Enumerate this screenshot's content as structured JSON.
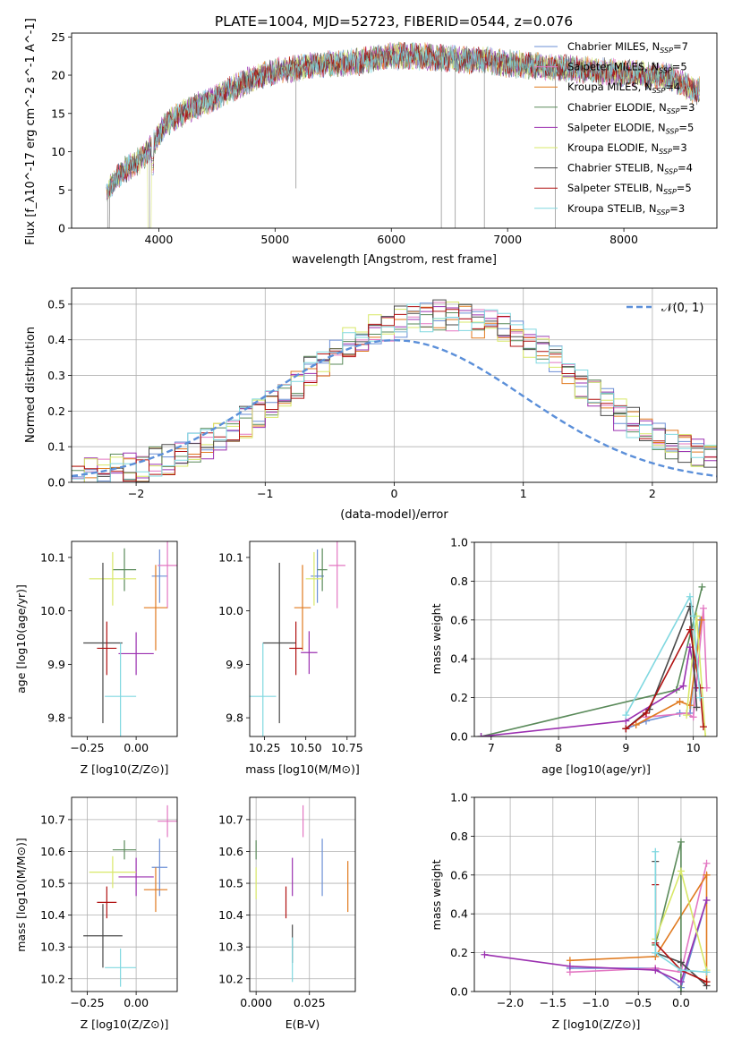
{
  "figure": {
    "title": "PLATE=1004, MJD=52723, FIBERID=0544, z=0.076"
  },
  "colors": {
    "chabrier_miles": "#6b8fd6",
    "salpeter_miles": "#e377c2",
    "kroupa_miles": "#e07a1f",
    "chabrier_elodie": "#5a8a5a",
    "salpeter_elodie": "#9b30b0",
    "kroupa_elodie": "#d8e868",
    "chabrier_stelib": "#4a4a4a",
    "salpeter_stelib": "#b01010",
    "kroupa_stelib": "#80d8e0",
    "gaussian": "#5b8fd9",
    "grid": "#b0b0b0"
  },
  "chart_data": [
    {
      "id": "spectrum",
      "type": "line",
      "title": "PLATE=1004, MJD=52723, FIBERID=0544, z=0.076",
      "xlabel": "wavelength [Angstrom, rest frame]",
      "ylabel": "Flux [f_λ10^-17 erg cm^-2 s^-1 A^-1]",
      "xlim": [
        3250,
        8800
      ],
      "ylim": [
        0,
        25.5
      ],
      "xticks": [
        "4000",
        "5000",
        "6000",
        "7000",
        "8000"
      ],
      "yticks": [
        "0",
        "5",
        "10",
        "15",
        "20",
        "25"
      ],
      "grid": false,
      "legend_position": "upper right",
      "legend": [
        {
          "name": "Chabrier MILES, N",
          "sub": "SSP",
          "val": "=7",
          "color_key": "chabrier_miles"
        },
        {
          "name": "Salpeter MILES, N",
          "sub": "SSP",
          "val": "=5",
          "color_key": "salpeter_miles"
        },
        {
          "name": "Kroupa MILES, N",
          "sub": "SSP",
          "val": "=4",
          "color_key": "kroupa_miles"
        },
        {
          "name": "Chabrier ELODIE, N",
          "sub": "SSP",
          "val": "=3",
          "color_key": "chabrier_elodie"
        },
        {
          "name": "Salpeter ELODIE, N",
          "sub": "SSP",
          "val": "=5",
          "color_key": "salpeter_elodie"
        },
        {
          "name": "Kroupa ELODIE, N",
          "sub": "SSP",
          "val": "=3",
          "color_key": "kroupa_elodie"
        },
        {
          "name": "Chabrier STELIB, N",
          "sub": "SSP",
          "val": "=4",
          "color_key": "chabrier_stelib"
        },
        {
          "name": "Salpeter STELIB, N",
          "sub": "SSP",
          "val": "=5",
          "color_key": "salpeter_stelib"
        },
        {
          "name": "Kroupa STELIB, N",
          "sub": "SSP",
          "val": "=3",
          "color_key": "kroupa_stelib"
        }
      ],
      "continuum": {
        "wavelength": [
          3550,
          3700,
          3850,
          3950,
          4050,
          4200,
          4400,
          4600,
          4800,
          5000,
          5200,
          5400,
          5600,
          5800,
          6000,
          6200,
          6400,
          6600,
          6800,
          7000,
          7200,
          7400,
          7600,
          7800,
          8000,
          8200,
          8400,
          8600
        ],
        "flux": [
          5,
          7.5,
          9,
          11,
          13.5,
          15,
          16.5,
          18,
          19.5,
          20.5,
          21,
          21.5,
          21.5,
          22,
          22.5,
          22.5,
          22.3,
          22,
          22,
          21.5,
          21.3,
          21,
          20.8,
          20.5,
          20.3,
          20,
          19.8,
          18
        ]
      },
      "deep_drops": [
        {
          "x": 3560,
          "y": 0
        },
        {
          "x": 3920,
          "y": 0
        },
        {
          "x": 5180,
          "y": 5.2
        },
        {
          "x": 6430,
          "y": 0
        },
        {
          "x": 6550,
          "y": 0
        },
        {
          "x": 6800,
          "y": 0
        },
        {
          "x": 7410,
          "y": 0
        }
      ]
    },
    {
      "id": "residuals",
      "type": "histogram",
      "xlabel": "(data-model)/error",
      "ylabel": "Normed distribution",
      "xlim": [
        -2.5,
        2.5
      ],
      "ylim": [
        0,
        0.545
      ],
      "xticks": [
        "−2",
        "−1",
        "0",
        "1",
        "2"
      ],
      "yticks": [
        "0.0",
        "0.1",
        "0.2",
        "0.3",
        "0.4",
        "0.5"
      ],
      "grid": true,
      "legend_position": "upper right",
      "gaussian_label": "𝒩(0, 1)",
      "bin_width": 0.1,
      "bin_start": -2.5,
      "base_profile": [
        0.02,
        0.025,
        0.03,
        0.035,
        0.04,
        0.045,
        0.055,
        0.065,
        0.08,
        0.095,
        0.11,
        0.13,
        0.15,
        0.17,
        0.19,
        0.22,
        0.25,
        0.28,
        0.31,
        0.34,
        0.37,
        0.39,
        0.41,
        0.43,
        0.44,
        0.45,
        0.455,
        0.46,
        0.47,
        0.465,
        0.46,
        0.45,
        0.44,
        0.43,
        0.41,
        0.39,
        0.37,
        0.34,
        0.31,
        0.28,
        0.25,
        0.22,
        0.19,
        0.17,
        0.15,
        0.13,
        0.11,
        0.095,
        0.08,
        0.065,
        0.055
      ],
      "series_order": [
        "chabrier_miles",
        "salpeter_miles",
        "kroupa_miles",
        "chabrier_elodie",
        "salpeter_elodie",
        "kroupa_elodie",
        "chabrier_stelib",
        "salpeter_stelib",
        "kroupa_stelib"
      ]
    },
    {
      "id": "age_vs_z",
      "type": "errorbar",
      "xlabel": "Z [log10(Z/Z⊙)]",
      "ylabel": "age  [log10(age/yr)]",
      "xlim": [
        -0.33,
        0.21
      ],
      "ylim": [
        9.765,
        10.13
      ],
      "xticks": [
        "−0.25",
        "0.00"
      ],
      "yticks": [
        "9.8",
        "9.9",
        "10.0",
        "10.1"
      ],
      "grid": false,
      "points": [
        {
          "c": "chabrier_miles",
          "x": 0.12,
          "y": 10.065,
          "xe": 0.04,
          "ye": 0.05
        },
        {
          "c": "salpeter_miles",
          "x": 0.16,
          "y": 10.085,
          "xe": 0.05,
          "ye": 0.08
        },
        {
          "c": "kroupa_miles",
          "x": 0.1,
          "y": 10.006,
          "xe": 0.06,
          "ye": 0.08
        },
        {
          "c": "chabrier_elodie",
          "x": -0.06,
          "y": 10.077,
          "xe": 0.06,
          "ye": 0.04
        },
        {
          "c": "salpeter_elodie",
          "x": 0.0,
          "y": 9.92,
          "xe": 0.09,
          "ye": 0.04
        },
        {
          "c": "kroupa_elodie",
          "x": -0.12,
          "y": 10.06,
          "xe": 0.12,
          "ye": 0.05
        },
        {
          "c": "chabrier_stelib",
          "x": -0.17,
          "y": 9.94,
          "xe": 0.1,
          "ye": 0.15
        },
        {
          "c": "salpeter_stelib",
          "x": -0.15,
          "y": 9.93,
          "xe": 0.05,
          "ye": 0.05
        },
        {
          "c": "kroupa_stelib",
          "x": -0.08,
          "y": 9.84,
          "xe": 0.08,
          "ye": 0.1
        }
      ]
    },
    {
      "id": "age_vs_mass",
      "type": "errorbar",
      "xlabel": "mass [log10(M/M⊙)]",
      "ylabel": "",
      "xlim": [
        10.16,
        10.8
      ],
      "ylim": [
        9.765,
        10.13
      ],
      "xticks": [
        "10.25",
        "10.50",
        "10.75"
      ],
      "yticks": [
        "9.8",
        "9.9",
        "10.0",
        "10.1"
      ],
      "grid": false,
      "points": [
        {
          "c": "chabrier_miles",
          "x": 10.57,
          "y": 10.065,
          "xe": 0.04,
          "ye": 0.05
        },
        {
          "c": "salpeter_miles",
          "x": 10.69,
          "y": 10.085,
          "xe": 0.05,
          "ye": 0.08
        },
        {
          "c": "kroupa_miles",
          "x": 10.48,
          "y": 10.006,
          "xe": 0.05,
          "ye": 0.08
        },
        {
          "c": "chabrier_elodie",
          "x": 10.6,
          "y": 10.077,
          "xe": 0.03,
          "ye": 0.04
        },
        {
          "c": "salpeter_elodie",
          "x": 10.52,
          "y": 9.922,
          "xe": 0.05,
          "ye": 0.04
        },
        {
          "c": "kroupa_elodie",
          "x": 10.55,
          "y": 10.06,
          "xe": 0.05,
          "ye": 0.05
        },
        {
          "c": "chabrier_stelib",
          "x": 10.34,
          "y": 9.94,
          "xe": 0.1,
          "ye": 0.15
        },
        {
          "c": "salpeter_stelib",
          "x": 10.44,
          "y": 9.93,
          "xe": 0.04,
          "ye": 0.05
        },
        {
          "c": "kroupa_stelib",
          "x": 10.24,
          "y": 9.84,
          "xe": 0.08,
          "ye": 0.1
        }
      ]
    },
    {
      "id": "mass_weight_vs_age",
      "type": "line",
      "xlabel": "age  [log10(age/yr)]",
      "ylabel": "mass weight",
      "xlim": [
        6.75,
        10.35
      ],
      "ylim": [
        0,
        1.0
      ],
      "xticks": [
        "7",
        "8",
        "9",
        "10"
      ],
      "yticks": [
        "0.0",
        "0.2",
        "0.4",
        "0.6",
        "0.8",
        "1.0"
      ],
      "grid": true,
      "series": [
        {
          "c": "chabrier_miles",
          "points": [
            [
              9.0,
              0.04
            ],
            [
              9.3,
              0.08
            ],
            [
              9.8,
              0.12
            ],
            [
              9.95,
              0.12
            ],
            [
              10.1,
              0.6
            ]
          ]
        },
        {
          "c": "salpeter_miles",
          "points": [
            [
              9.3,
              0.1
            ],
            [
              9.9,
              0.12
            ],
            [
              10.0,
              0.1
            ],
            [
              10.15,
              0.66
            ],
            [
              10.2,
              0.25
            ]
          ]
        },
        {
          "c": "kroupa_miles",
          "points": [
            [
              9.15,
              0.06
            ],
            [
              9.8,
              0.18
            ],
            [
              9.95,
              0.16
            ],
            [
              10.12,
              0.6
            ]
          ]
        },
        {
          "c": "chabrier_elodie",
          "points": [
            [
              6.85,
              0.0
            ],
            [
              9.75,
              0.24
            ],
            [
              10.13,
              0.77
            ]
          ]
        },
        {
          "c": "salpeter_elodie",
          "points": [
            [
              6.85,
              0.0
            ],
            [
              9.0,
              0.08
            ],
            [
              9.85,
              0.26
            ],
            [
              9.95,
              0.46
            ],
            [
              10.05,
              0.25
            ]
          ]
        },
        {
          "c": "kroupa_elodie",
          "points": [
            [
              9.9,
              0.11
            ],
            [
              10.05,
              0.62
            ],
            [
              10.18,
              0.0
            ]
          ]
        },
        {
          "c": "chabrier_stelib",
          "points": [
            [
              9.0,
              0.04
            ],
            [
              9.35,
              0.14
            ],
            [
              9.95,
              0.67
            ],
            [
              10.05,
              0.15
            ]
          ]
        },
        {
          "c": "salpeter_stelib",
          "points": [
            [
              9.0,
              0.04
            ],
            [
              9.3,
              0.12
            ],
            [
              9.95,
              0.55
            ],
            [
              10.1,
              0.25
            ],
            [
              10.15,
              0.05
            ]
          ]
        },
        {
          "c": "kroupa_stelib",
          "points": [
            [
              9.0,
              0.11
            ],
            [
              9.95,
              0.72
            ],
            [
              10.0,
              0.62
            ],
            [
              10.1,
              0.2
            ]
          ]
        }
      ]
    },
    {
      "id": "mass_vs_z",
      "type": "errorbar",
      "xlabel": "Z [log10(Z/Z⊙)]",
      "ylabel": "mass [log10(M/M⊙)]",
      "xlim": [
        -0.33,
        0.21
      ],
      "ylim": [
        10.16,
        10.77
      ],
      "xticks": [
        "−0.25",
        "0.00"
      ],
      "yticks": [
        "10.2",
        "10.3",
        "10.4",
        "10.5",
        "10.6",
        "10.7"
      ],
      "grid": true,
      "points": [
        {
          "c": "chabrier_miles",
          "x": 0.12,
          "y": 10.55,
          "xe": 0.04,
          "ye": 0.09
        },
        {
          "c": "salpeter_miles",
          "x": 0.16,
          "y": 10.695,
          "xe": 0.05,
          "ye": 0.05
        },
        {
          "c": "kroupa_miles",
          "x": 0.1,
          "y": 10.48,
          "xe": 0.06,
          "ye": 0.07
        },
        {
          "c": "chabrier_elodie",
          "x": -0.06,
          "y": 10.605,
          "xe": 0.06,
          "ye": 0.03
        },
        {
          "c": "salpeter_elodie",
          "x": 0.0,
          "y": 10.52,
          "xe": 0.09,
          "ye": 0.06
        },
        {
          "c": "kroupa_elodie",
          "x": -0.12,
          "y": 10.535,
          "xe": 0.12,
          "ye": 0.05
        },
        {
          "c": "chabrier_stelib",
          "x": -0.17,
          "y": 10.335,
          "xe": 0.1,
          "ye": 0.1
        },
        {
          "c": "salpeter_stelib",
          "x": -0.15,
          "y": 10.44,
          "xe": 0.05,
          "ye": 0.05
        },
        {
          "c": "kroupa_stelib",
          "x": -0.08,
          "y": 10.235,
          "xe": 0.08,
          "ye": 0.06
        }
      ]
    },
    {
      "id": "mass_vs_ebv",
      "type": "errorbar",
      "xlabel": "E(B-V)",
      "ylabel": "",
      "xlim": [
        -0.003,
        0.0465
      ],
      "ylim": [
        10.16,
        10.77
      ],
      "xticks": [
        "0.000",
        "0.025"
      ],
      "yticks": [
        "10.2",
        "10.3",
        "10.4",
        "10.5",
        "10.6",
        "10.7"
      ],
      "grid": true,
      "points": [
        {
          "c": "chabrier_miles",
          "x": 0.031,
          "y": 10.55,
          "xe": 0.0,
          "ye": 0.09
        },
        {
          "c": "salpeter_miles",
          "x": 0.022,
          "y": 10.695,
          "xe": 0.0,
          "ye": 0.05
        },
        {
          "c": "kroupa_miles",
          "x": 0.043,
          "y": 10.49,
          "xe": 0.0,
          "ye": 0.08
        },
        {
          "c": "chabrier_elodie",
          "x": 0.0,
          "y": 10.605,
          "xe": 0.0,
          "ye": 0.03
        },
        {
          "c": "salpeter_elodie",
          "x": 0.017,
          "y": 10.52,
          "xe": 0.0,
          "ye": 0.06
        },
        {
          "c": "kroupa_elodie",
          "x": 0.0,
          "y": 10.5,
          "xe": 0.0,
          "ye": 0.05
        },
        {
          "c": "chabrier_stelib",
          "x": 0.017,
          "y": 10.31,
          "xe": 0.0,
          "ye": 0.06
        },
        {
          "c": "salpeter_stelib",
          "x": 0.014,
          "y": 10.44,
          "xe": 0.0,
          "ye": 0.05
        },
        {
          "c": "kroupa_stelib",
          "x": 0.017,
          "y": 10.26,
          "xe": 0.0,
          "ye": 0.07
        }
      ]
    },
    {
      "id": "mass_weight_vs_z",
      "type": "line",
      "xlabel": "Z [log10(Z/Z⊙)]",
      "ylabel": "mass weight",
      "xlim": [
        -2.42,
        0.42
      ],
      "ylim": [
        0,
        1.0
      ],
      "xticks": [
        "−2.0",
        "−1.5",
        "−1.0",
        "−0.5",
        "0.0"
      ],
      "yticks": [
        "0.0",
        "0.2",
        "0.4",
        "0.6",
        "0.8",
        "1.0"
      ],
      "grid": true,
      "series": [
        {
          "c": "chabrier_miles",
          "points": [
            [
              -1.3,
              0.12
            ],
            [
              -0.3,
              0.12
            ],
            [
              0.0,
              0.02
            ],
            [
              0.3,
              0.47
            ]
          ]
        },
        {
          "c": "salpeter_miles",
          "points": [
            [
              -1.3,
              0.1
            ],
            [
              -0.3,
              0.12
            ],
            [
              0.0,
              0.1
            ],
            [
              0.3,
              0.66
            ]
          ]
        },
        {
          "c": "kroupa_miles",
          "points": [
            [
              -1.3,
              0.16
            ],
            [
              -0.3,
              0.18
            ],
            [
              0.3,
              0.6
            ],
            [
              0.3,
              0.05
            ]
          ]
        },
        {
          "c": "chabrier_elodie",
          "points": [
            [
              -0.3,
              0.24
            ],
            [
              0.0,
              0.77
            ],
            [
              0.0,
              0.0
            ]
          ]
        },
        {
          "c": "salpeter_elodie",
          "points": [
            [
              -2.3,
              0.19
            ],
            [
              -1.3,
              0.13
            ],
            [
              -0.3,
              0.11
            ],
            [
              0.0,
              0.05
            ],
            [
              0.3,
              0.47
            ]
          ]
        },
        {
          "c": "kroupa_elodie",
          "points": [
            [
              -0.3,
              0.27
            ],
            [
              0.0,
              0.62
            ],
            [
              0.3,
              0.11
            ]
          ]
        },
        {
          "c": "chabrier_stelib",
          "points": [
            [
              -0.3,
              0.67
            ],
            [
              -0.3,
              0.2
            ],
            [
              0.0,
              0.15
            ],
            [
              0.3,
              0.03
            ]
          ]
        },
        {
          "c": "salpeter_stelib",
          "points": [
            [
              -0.3,
              0.55
            ],
            [
              -0.3,
              0.25
            ],
            [
              0.0,
              0.11
            ],
            [
              0.3,
              0.05
            ]
          ]
        },
        {
          "c": "kroupa_stelib",
          "points": [
            [
              -0.3,
              0.72
            ],
            [
              -0.3,
              0.2
            ],
            [
              0.0,
              0.11
            ],
            [
              0.3,
              0.1
            ]
          ]
        }
      ]
    }
  ]
}
